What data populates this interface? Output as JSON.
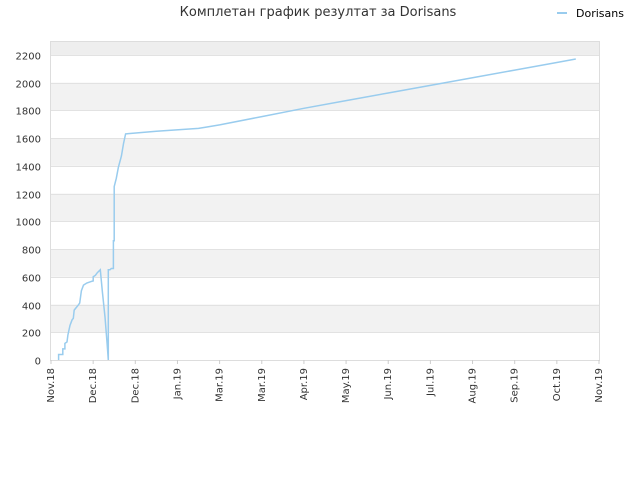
{
  "chart_data": {
    "type": "line",
    "title": "Комплетан график резултат за Dorisans",
    "xlabel": "",
    "ylabel": "",
    "legend_position": "top-right",
    "grid": true,
    "ylim": [
      0,
      2300
    ],
    "yticks": [
      0,
      200,
      400,
      600,
      800,
      1000,
      1200,
      1400,
      1600,
      1800,
      2000,
      2200
    ],
    "xticks": [
      "Nov.18",
      "Dec.18",
      "Dec.18",
      "Jan.19",
      "Mar.19",
      "Mar.19",
      "Apr.19",
      "May.19",
      "Jun.19",
      "Jul.19",
      "Aug.19",
      "Sep.19",
      "Oct.19",
      "Nov.19"
    ],
    "xlim": [
      0,
      13
    ],
    "series": [
      {
        "name": "Dorisans",
        "color": "#99ccee",
        "points": [
          [
            0.18,
            0
          ],
          [
            0.18,
            40
          ],
          [
            0.28,
            40
          ],
          [
            0.28,
            80
          ],
          [
            0.33,
            80
          ],
          [
            0.33,
            120
          ],
          [
            0.38,
            130
          ],
          [
            0.4,
            180
          ],
          [
            0.45,
            250
          ],
          [
            0.5,
            290
          ],
          [
            0.53,
            300
          ],
          [
            0.55,
            360
          ],
          [
            0.63,
            390
          ],
          [
            0.68,
            410
          ],
          [
            0.72,
            500
          ],
          [
            0.77,
            540
          ],
          [
            0.85,
            555
          ],
          [
            0.95,
            565
          ],
          [
            1.0,
            570
          ],
          [
            1.0,
            600
          ],
          [
            1.05,
            610
          ],
          [
            1.1,
            630
          ],
          [
            1.17,
            650
          ],
          [
            1.22,
            490
          ],
          [
            1.28,
            310
          ],
          [
            1.33,
            120
          ],
          [
            1.36,
            0
          ],
          [
            1.36,
            650
          ],
          [
            1.4,
            650
          ],
          [
            1.43,
            660
          ],
          [
            1.48,
            660
          ],
          [
            1.48,
            860
          ],
          [
            1.5,
            860
          ],
          [
            1.5,
            1250
          ],
          [
            1.55,
            1310
          ],
          [
            1.6,
            1390
          ],
          [
            1.67,
            1470
          ],
          [
            1.72,
            1560
          ],
          [
            1.77,
            1630
          ],
          [
            2.5,
            1650
          ],
          [
            3.5,
            1670
          ],
          [
            3.7,
            1680
          ],
          [
            4.0,
            1695
          ],
          [
            5.0,
            1755
          ],
          [
            6.0,
            1815
          ],
          [
            7.0,
            1870
          ],
          [
            8.0,
            1925
          ],
          [
            9.0,
            1980
          ],
          [
            10.0,
            2035
          ],
          [
            11.0,
            2090
          ],
          [
            12.0,
            2145
          ],
          [
            12.45,
            2170
          ]
        ]
      }
    ]
  }
}
